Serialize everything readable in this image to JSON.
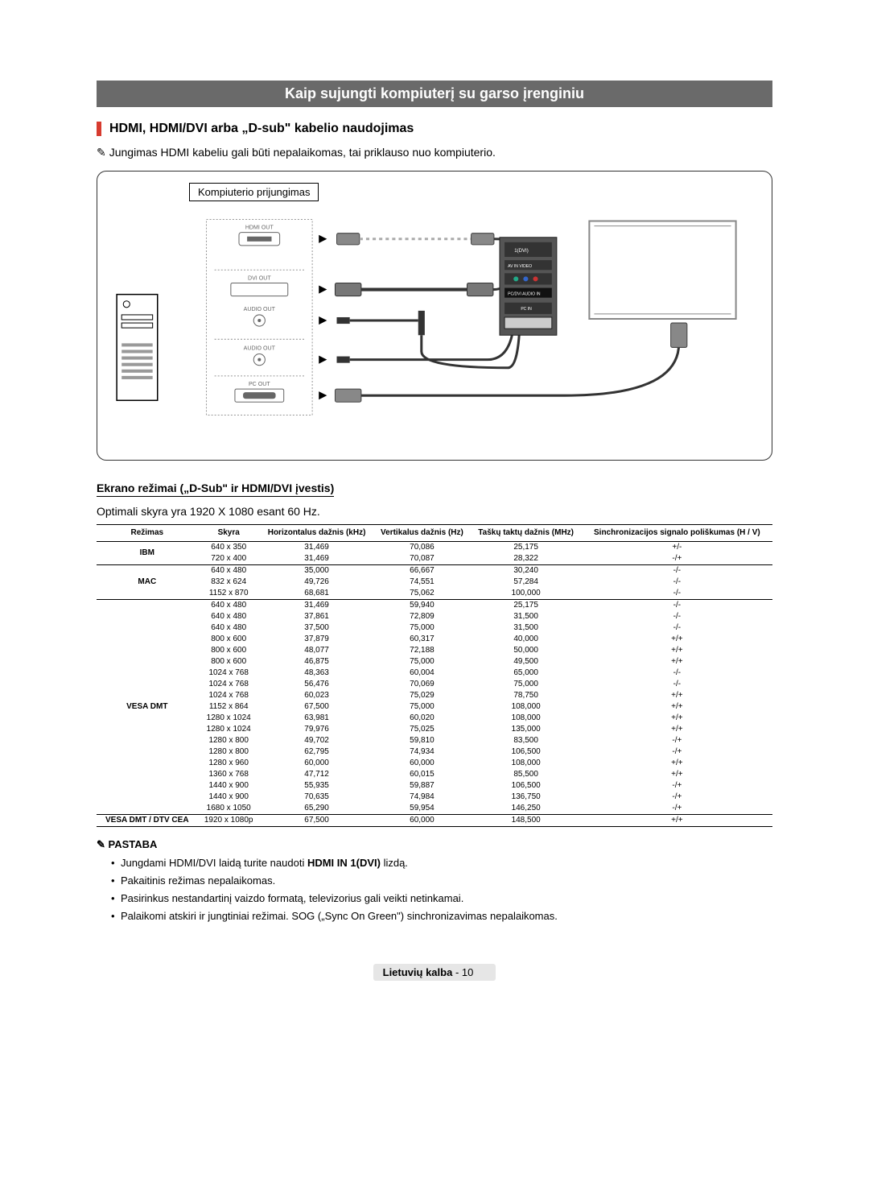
{
  "banner": "Kaip sujungti kompiuterį su garso įrenginiu",
  "subhead": "HDMI, HDMI/DVI arba „D-sub\" kabelio naudojimas",
  "top_note": "Jungimas HDMI kabeliu gali būti nepalaikomas, tai priklauso nuo kompiuterio.",
  "diagram": {
    "label": "Kompiuterio prijungimas",
    "ports": [
      "HDMI OUT",
      "DVI OUT",
      "AUDIO OUT",
      "AUDIO OUT",
      "PC OUT"
    ],
    "back_ports": [
      "1(DVI)",
      "2",
      "AV IN",
      "VIDEO",
      "COMPONENT IN",
      "PC/DVI AUDIO IN",
      "PC IN"
    ]
  },
  "modes_section": {
    "title": "Ekrano režimai („D-Sub\" ir HDMI/DVI įvestis)",
    "optimal": "Optimali skyra yra 1920 X 1080 esant 60 Hz."
  },
  "table": {
    "headers": [
      "Režimas",
      "Skyra",
      "Horizontalus dažnis (kHz)",
      "Vertikalus dažnis (Hz)",
      "Taškų taktų dažnis (MHz)",
      "Sinchronizacijos signalo poliškumas (H / V)"
    ],
    "groups": [
      {
        "mode": "IBM",
        "rows": [
          [
            "640 x 350",
            "31,469",
            "70,086",
            "25,175",
            "+/-"
          ],
          [
            "720 x 400",
            "31,469",
            "70,087",
            "28,322",
            "-/+"
          ]
        ]
      },
      {
        "mode": "MAC",
        "rows": [
          [
            "640 x 480",
            "35,000",
            "66,667",
            "30,240",
            "-/-"
          ],
          [
            "832 x 624",
            "49,726",
            "74,551",
            "57,284",
            "-/-"
          ],
          [
            "1152 x 870",
            "68,681",
            "75,062",
            "100,000",
            "-/-"
          ]
        ]
      },
      {
        "mode": "VESA DMT",
        "rows": [
          [
            "640 x 480",
            "31,469",
            "59,940",
            "25,175",
            "-/-"
          ],
          [
            "640 x 480",
            "37,861",
            "72,809",
            "31,500",
            "-/-"
          ],
          [
            "640 x 480",
            "37,500",
            "75,000",
            "31,500",
            "-/-"
          ],
          [
            "800 x 600",
            "37,879",
            "60,317",
            "40,000",
            "+/+"
          ],
          [
            "800 x 600",
            "48,077",
            "72,188",
            "50,000",
            "+/+"
          ],
          [
            "800 x 600",
            "46,875",
            "75,000",
            "49,500",
            "+/+"
          ],
          [
            "1024 x 768",
            "48,363",
            "60,004",
            "65,000",
            "-/-"
          ],
          [
            "1024 x 768",
            "56,476",
            "70,069",
            "75,000",
            "-/-"
          ],
          [
            "1024 x 768",
            "60,023",
            "75,029",
            "78,750",
            "+/+"
          ],
          [
            "1152 x 864",
            "67,500",
            "75,000",
            "108,000",
            "+/+"
          ],
          [
            "1280 x 1024",
            "63,981",
            "60,020",
            "108,000",
            "+/+"
          ],
          [
            "1280 x 1024",
            "79,976",
            "75,025",
            "135,000",
            "+/+"
          ],
          [
            "1280 x 800",
            "49,702",
            "59,810",
            "83,500",
            "-/+"
          ],
          [
            "1280 x 800",
            "62,795",
            "74,934",
            "106,500",
            "-/+"
          ],
          [
            "1280 x 960",
            "60,000",
            "60,000",
            "108,000",
            "+/+"
          ],
          [
            "1360 x 768",
            "47,712",
            "60,015",
            "85,500",
            "+/+"
          ],
          [
            "1440 x 900",
            "55,935",
            "59,887",
            "106,500",
            "-/+"
          ],
          [
            "1440 x 900",
            "70,635",
            "74,984",
            "136,750",
            "-/+"
          ],
          [
            "1680 x 1050",
            "65,290",
            "59,954",
            "146,250",
            "-/+"
          ]
        ]
      },
      {
        "mode": "VESA DMT / DTV CEA",
        "rows": [
          [
            "1920 x 1080p",
            "67,500",
            "60,000",
            "148,500",
            "+/+"
          ]
        ]
      }
    ]
  },
  "pastaba": {
    "title": "PASTABA",
    "items": [
      {
        "pre": "Jungdami HDMI/DVI laidą turite naudoti ",
        "bold": "HDMI IN 1(DVI)",
        "post": " lizdą."
      },
      {
        "pre": "Pakaitinis režimas nepalaikomas.",
        "bold": "",
        "post": ""
      },
      {
        "pre": "Pasirinkus nestandartinį vaizdo formatą, televizorius gali veikti netinkamai.",
        "bold": "",
        "post": ""
      },
      {
        "pre": "Palaikomi atskiri ir jungtiniai režimai. SOG („Sync On Green\") sinchronizavimas nepalaikomas.",
        "bold": "",
        "post": ""
      }
    ]
  },
  "footer": {
    "lang": "Lietuvių kalba",
    "sep": " - ",
    "page": "10"
  },
  "styling": {
    "banner_bg": "#6a6a6a",
    "banner_fg": "#ffffff",
    "accent_bar": "#d73b2f",
    "body_fontsize": 14,
    "table_fontsize": 10,
    "border_color": "#000000",
    "background": "#ffffff"
  }
}
